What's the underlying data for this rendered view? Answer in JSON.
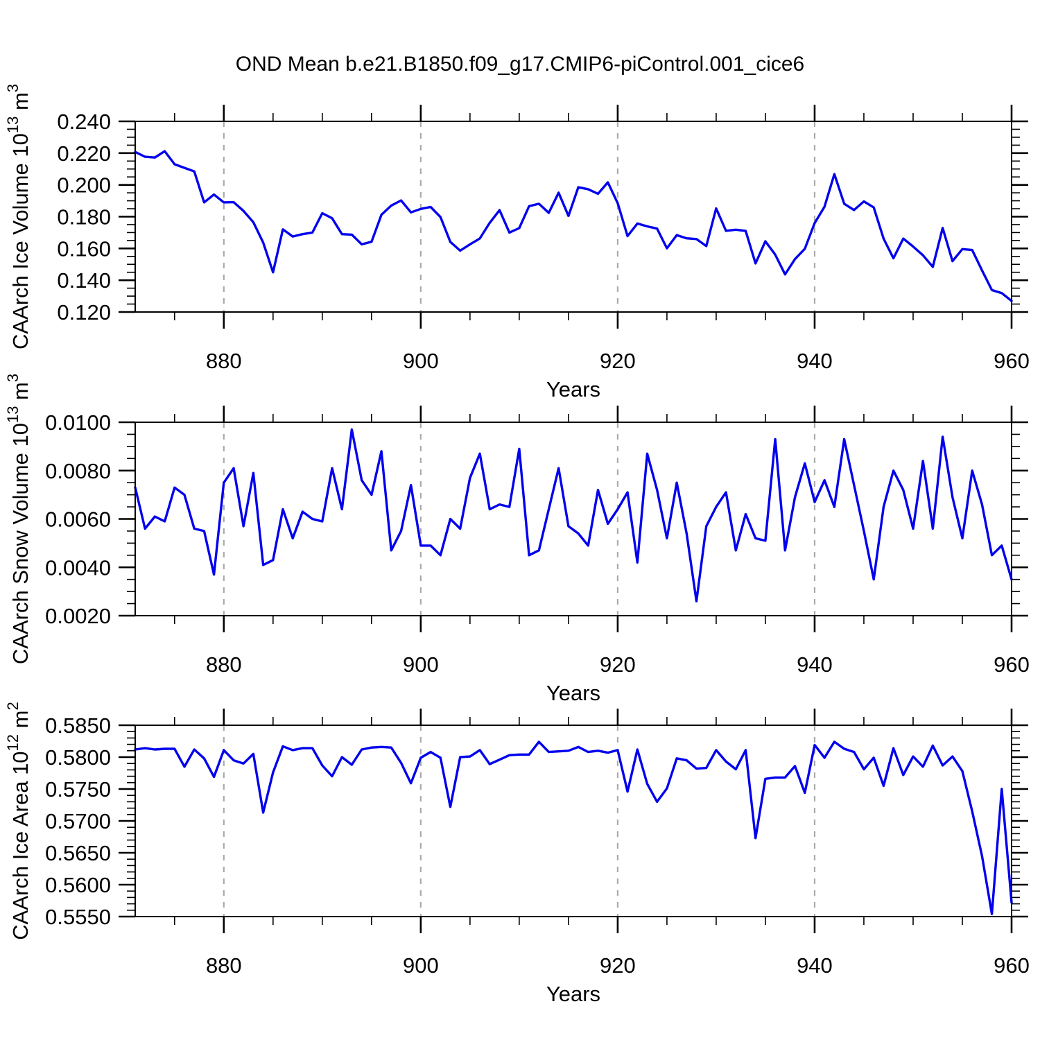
{
  "title": "OND Mean b.e21.B1850.f09_g17.CMIP6-piControl.001_cice6",
  "colors": {
    "line": "#0000ee",
    "frame": "#000000",
    "grid": "#aaaaaa",
    "background": "#ffffff"
  },
  "chart_data": [
    {
      "type": "line",
      "id": "ice-volume",
      "ylabel_segments": [
        {
          "t": "CAArch Ice Volume 10"
        },
        {
          "sup": "13"
        },
        {
          "t": " m"
        },
        {
          "sup": "3"
        }
      ],
      "xlabel": "Years",
      "xlim": [
        871,
        960
      ],
      "ylim": [
        0.12,
        0.24
      ],
      "xticks": [
        880,
        900,
        920,
        940,
        960
      ],
      "xtick_labels": [
        "880",
        "900",
        "920",
        "940",
        "960"
      ],
      "x_minor_step": 5,
      "grid_x": [
        880,
        900,
        920,
        940
      ],
      "yticks": [
        0.12,
        0.14,
        0.16,
        0.18,
        0.2,
        0.22,
        0.24
      ],
      "ytick_labels": [
        "0.120",
        "0.140",
        "0.160",
        "0.180",
        "0.200",
        "0.220",
        "0.240"
      ],
      "y_minor_step": 0.005,
      "x_start": 871,
      "x_step": 1,
      "values": [
        0.2207,
        0.2177,
        0.2172,
        0.2212,
        0.213,
        0.2107,
        0.2085,
        0.189,
        0.1939,
        0.189,
        0.1891,
        0.1836,
        0.1765,
        0.1637,
        0.145,
        0.172,
        0.1675,
        0.169,
        0.17,
        0.1822,
        0.179,
        0.169,
        0.1687,
        0.1626,
        0.1642,
        0.1812,
        0.187,
        0.1902,
        0.1827,
        0.1849,
        0.1861,
        0.1798,
        0.1641,
        0.1586,
        0.1626,
        0.1663,
        0.1761,
        0.1841,
        0.17,
        0.1728,
        0.1866,
        0.1881,
        0.1824,
        0.1951,
        0.1805,
        0.1985,
        0.1973,
        0.1944,
        0.2016,
        0.1885,
        0.1678,
        0.1757,
        0.1739,
        0.1725,
        0.1601,
        0.1684,
        0.1664,
        0.1659,
        0.1615,
        0.1852,
        0.1711,
        0.1718,
        0.171,
        0.1506,
        0.1645,
        0.1561,
        0.1437,
        0.1533,
        0.1598,
        0.176,
        0.1863,
        0.2068,
        0.1881,
        0.1842,
        0.1896,
        0.1858,
        0.1662,
        0.1538,
        0.1662,
        0.1612,
        0.1557,
        0.1484,
        0.1729,
        0.152,
        0.1596,
        0.159,
        0.1462,
        0.1338,
        0.1319,
        0.127
      ]
    },
    {
      "type": "line",
      "id": "snow-volume",
      "ylabel_segments": [
        {
          "t": "CAArch Snow Volume 10"
        },
        {
          "sup": "13"
        },
        {
          "t": " m"
        },
        {
          "sup": "3"
        }
      ],
      "xlabel": "Years",
      "xlim": [
        871,
        960
      ],
      "ylim": [
        0.002,
        0.01
      ],
      "xticks": [
        880,
        900,
        920,
        940,
        960
      ],
      "xtick_labels": [
        "880",
        "900",
        "920",
        "940",
        "960"
      ],
      "x_minor_step": 5,
      "grid_x": [
        880,
        900,
        920,
        940
      ],
      "yticks": [
        0.002,
        0.004,
        0.006,
        0.008,
        0.01
      ],
      "ytick_labels": [
        "0.0020",
        "0.0040",
        "0.0060",
        "0.0080",
        "0.0100"
      ],
      "y_minor_step": 0.0005,
      "x_start": 871,
      "x_step": 1,
      "values": [
        0.0073,
        0.0056,
        0.0061,
        0.0059,
        0.0073,
        0.007,
        0.0056,
        0.0055,
        0.0037,
        0.0075,
        0.0081,
        0.0057,
        0.0079,
        0.0041,
        0.0043,
        0.0064,
        0.0052,
        0.0063,
        0.006,
        0.0059,
        0.0081,
        0.0064,
        0.0097,
        0.0076,
        0.007,
        0.0088,
        0.0047,
        0.0055,
        0.0074,
        0.0049,
        0.0049,
        0.0045,
        0.006,
        0.0056,
        0.0077,
        0.0087,
        0.0064,
        0.0066,
        0.0065,
        0.0089,
        0.0045,
        0.0047,
        0.0064,
        0.0081,
        0.0057,
        0.0054,
        0.0049,
        0.0072,
        0.0058,
        0.0064,
        0.0071,
        0.0042,
        0.0087,
        0.0072,
        0.0052,
        0.0075,
        0.0054,
        0.0026,
        0.0057,
        0.0065,
        0.0071,
        0.0047,
        0.0062,
        0.0052,
        0.0051,
        0.0093,
        0.0047,
        0.0069,
        0.0083,
        0.0067,
        0.0076,
        0.0065,
        0.0093,
        0.0074,
        0.0055,
        0.0035,
        0.0065,
        0.008,
        0.0072,
        0.0056,
        0.0084,
        0.0056,
        0.0094,
        0.0069,
        0.0052,
        0.008,
        0.0066,
        0.0045,
        0.0049,
        0.0035
      ]
    },
    {
      "type": "line",
      "id": "ice-area",
      "ylabel_segments": [
        {
          "t": "CAArch Ice Area 10"
        },
        {
          "sup": "12"
        },
        {
          "t": " m"
        },
        {
          "sup": "2"
        }
      ],
      "xlabel": "Years",
      "xlim": [
        871,
        960
      ],
      "ylim": [
        0.555,
        0.585
      ],
      "xticks": [
        880,
        900,
        920,
        940,
        960
      ],
      "xtick_labels": [
        "880",
        "900",
        "920",
        "940",
        "960"
      ],
      "x_minor_step": 5,
      "grid_x": [
        880,
        900,
        920,
        940
      ],
      "yticks": [
        0.555,
        0.56,
        0.565,
        0.57,
        0.575,
        0.58,
        0.585
      ],
      "ytick_labels": [
        "0.5550",
        "0.5600",
        "0.5650",
        "0.5700",
        "0.5750",
        "0.5800",
        "0.5850"
      ],
      "y_minor_step": 0.001,
      "x_start": 871,
      "x_step": 1,
      "values": [
        0.5812,
        0.5814,
        0.5812,
        0.5813,
        0.5813,
        0.5785,
        0.5812,
        0.5798,
        0.5769,
        0.5811,
        0.5795,
        0.579,
        0.5805,
        0.5713,
        0.5776,
        0.5817,
        0.5811,
        0.5814,
        0.5814,
        0.5787,
        0.577,
        0.58,
        0.5788,
        0.5812,
        0.5815,
        0.5816,
        0.5815,
        0.5791,
        0.5759,
        0.5799,
        0.5808,
        0.5799,
        0.5722,
        0.58,
        0.5801,
        0.5811,
        0.5789,
        0.5796,
        0.5803,
        0.5804,
        0.5804,
        0.5824,
        0.5808,
        0.5809,
        0.581,
        0.5816,
        0.5808,
        0.581,
        0.5807,
        0.5811,
        0.5746,
        0.5812,
        0.5758,
        0.573,
        0.5751,
        0.5798,
        0.5795,
        0.5782,
        0.5783,
        0.5811,
        0.5793,
        0.5781,
        0.5811,
        0.5673,
        0.5766,
        0.5768,
        0.5768,
        0.5786,
        0.5744,
        0.5819,
        0.5799,
        0.5824,
        0.5813,
        0.5808,
        0.5781,
        0.5799,
        0.5755,
        0.5814,
        0.5772,
        0.5801,
        0.5785,
        0.5818,
        0.5787,
        0.5801,
        0.5778,
        0.5715,
        0.5645,
        0.5554,
        0.575,
        0.5572
      ]
    }
  ]
}
